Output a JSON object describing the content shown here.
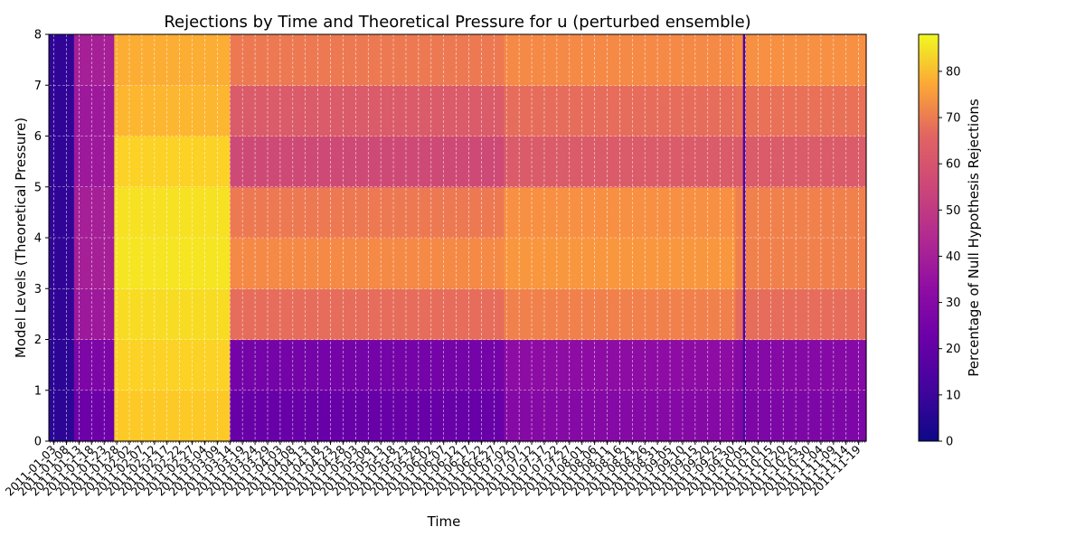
{
  "chart_data": {
    "type": "heatmap",
    "title": "Rejections by Time and Theoretical Pressure for u (perturbed ensemble)",
    "xlabel": "Time",
    "ylabel": "Model Levels (Theoretical Pressure)",
    "colorbar_label": "Percentage of Null Hypothesis Rejections",
    "colormap": "plasma",
    "vmin": 0,
    "vmax": 88,
    "colorbar_ticks": [
      "0",
      "10",
      "20",
      "30",
      "40",
      "50",
      "60",
      "70",
      "80"
    ],
    "ylim": [
      0,
      8
    ],
    "y_ticks": [
      "0",
      "1",
      "2",
      "3",
      "4",
      "5",
      "6",
      "7",
      "8"
    ],
    "x_start_date": "2011-01-01",
    "x_end_date": "2011-11-21",
    "x_tick_labels": [
      "2011-01-03",
      "2011-01-08",
      "2011-01-13",
      "2011-01-18",
      "2011-01-23",
      "2011-01-28",
      "2011-02-02",
      "2011-02-07",
      "2011-02-12",
      "2011-02-17",
      "2011-02-22",
      "2011-02-27",
      "2011-03-04",
      "2011-03-09",
      "2011-03-14",
      "2011-03-19",
      "2011-03-24",
      "2011-03-29",
      "2011-04-03",
      "2011-04-08",
      "2011-04-13",
      "2011-04-18",
      "2011-04-23",
      "2011-04-28",
      "2011-05-03",
      "2011-05-08",
      "2011-05-13",
      "2011-05-18",
      "2011-05-23",
      "2011-05-28",
      "2011-06-02",
      "2011-06-07",
      "2011-06-12",
      "2011-06-17",
      "2011-06-22",
      "2011-06-27",
      "2011-07-02",
      "2011-07-07",
      "2011-07-12",
      "2011-07-17",
      "2011-07-22",
      "2011-07-27",
      "2011-08-01",
      "2011-08-06",
      "2011-08-11",
      "2011-08-16",
      "2011-08-21",
      "2011-08-26",
      "2011-08-31",
      "2011-09-05",
      "2011-09-10",
      "2011-09-15",
      "2011-09-20",
      "2011-09-25",
      "2011-09-30",
      "2011-10-05",
      "2011-10-10",
      "2011-10-15",
      "2011-10-20",
      "2011-10-25",
      "2011-10-30",
      "2011-11-04",
      "2011-11-09",
      "2011-11-14",
      "2011-11-19"
    ],
    "x_tick_interval_days": 5,
    "grid": true,
    "levels": [
      {
        "range": [
          0,
          1
        ],
        "segments": [
          {
            "from": "2011-01-01",
            "to": "2011-01-10",
            "value": 5
          },
          {
            "from": "2011-01-11",
            "to": "2011-01-26",
            "value": 18
          },
          {
            "from": "2011-01-27",
            "to": "2011-03-13",
            "value": 78
          },
          {
            "from": "2011-03-14",
            "to": "2011-06-30",
            "value": 17
          },
          {
            "from": "2011-07-01",
            "to": "2011-09-30",
            "value": 24
          },
          {
            "from": "2011-10-01",
            "to": "2011-11-21",
            "value": 22
          }
        ]
      },
      {
        "range": [
          1,
          2
        ],
        "segments": [
          {
            "from": "2011-01-01",
            "to": "2011-01-10",
            "value": 5
          },
          {
            "from": "2011-01-11",
            "to": "2011-01-26",
            "value": 22
          },
          {
            "from": "2011-01-27",
            "to": "2011-03-13",
            "value": 80
          },
          {
            "from": "2011-03-14",
            "to": "2011-06-30",
            "value": 20
          },
          {
            "from": "2011-07-01",
            "to": "2011-09-30",
            "value": 26
          },
          {
            "from": "2011-10-01",
            "to": "2011-11-21",
            "value": 24
          }
        ]
      },
      {
        "range": [
          2,
          3
        ],
        "segments": [
          {
            "from": "2011-01-01",
            "to": "2011-01-10",
            "value": 6
          },
          {
            "from": "2011-01-11",
            "to": "2011-01-26",
            "value": 30
          },
          {
            "from": "2011-01-27",
            "to": "2011-03-13",
            "value": 82
          },
          {
            "from": "2011-03-14",
            "to": "2011-06-30",
            "value": 55
          },
          {
            "from": "2011-07-01",
            "to": "2011-09-30",
            "value": 60
          },
          {
            "from": "2011-10-01",
            "to": "2011-11-21",
            "value": 55
          }
        ]
      },
      {
        "range": [
          3,
          4
        ],
        "segments": [
          {
            "from": "2011-01-01",
            "to": "2011-01-10",
            "value": 6
          },
          {
            "from": "2011-01-11",
            "to": "2011-01-26",
            "value": 32
          },
          {
            "from": "2011-01-27",
            "to": "2011-03-13",
            "value": 84
          },
          {
            "from": "2011-03-14",
            "to": "2011-06-30",
            "value": 62
          },
          {
            "from": "2011-07-01",
            "to": "2011-09-30",
            "value": 66
          },
          {
            "from": "2011-10-01",
            "to": "2011-11-21",
            "value": 60
          }
        ]
      },
      {
        "range": [
          4,
          5
        ],
        "segments": [
          {
            "from": "2011-01-01",
            "to": "2011-01-10",
            "value": 6
          },
          {
            "from": "2011-01-11",
            "to": "2011-01-26",
            "value": 32
          },
          {
            "from": "2011-01-27",
            "to": "2011-03-13",
            "value": 83
          },
          {
            "from": "2011-03-14",
            "to": "2011-06-30",
            "value": 58
          },
          {
            "from": "2011-07-01",
            "to": "2011-09-30",
            "value": 64
          },
          {
            "from": "2011-10-01",
            "to": "2011-11-21",
            "value": 60
          }
        ]
      },
      {
        "range": [
          5,
          6
        ],
        "segments": [
          {
            "from": "2011-01-01",
            "to": "2011-01-10",
            "value": 6
          },
          {
            "from": "2011-01-11",
            "to": "2011-01-26",
            "value": 30
          },
          {
            "from": "2011-01-27",
            "to": "2011-03-13",
            "value": 80
          },
          {
            "from": "2011-03-14",
            "to": "2011-06-30",
            "value": 45
          },
          {
            "from": "2011-07-01",
            "to": "2011-09-30",
            "value": 50
          },
          {
            "from": "2011-10-01",
            "to": "2011-11-21",
            "value": 50
          }
        ]
      },
      {
        "range": [
          6,
          7
        ],
        "segments": [
          {
            "from": "2011-01-01",
            "to": "2011-01-10",
            "value": 6
          },
          {
            "from": "2011-01-11",
            "to": "2011-01-26",
            "value": 30
          },
          {
            "from": "2011-01-27",
            "to": "2011-03-13",
            "value": 74
          },
          {
            "from": "2011-03-14",
            "to": "2011-06-30",
            "value": 50
          },
          {
            "from": "2011-07-01",
            "to": "2011-09-30",
            "value": 55
          },
          {
            "from": "2011-10-01",
            "to": "2011-11-21",
            "value": 56
          }
        ]
      },
      {
        "range": [
          7,
          8
        ],
        "segments": [
          {
            "from": "2011-01-01",
            "to": "2011-01-10",
            "value": 6
          },
          {
            "from": "2011-01-11",
            "to": "2011-01-26",
            "value": 32
          },
          {
            "from": "2011-01-27",
            "to": "2011-03-13",
            "value": 72
          },
          {
            "from": "2011-03-14",
            "to": "2011-06-30",
            "value": 58
          },
          {
            "from": "2011-07-01",
            "to": "2011-09-30",
            "value": 62
          },
          {
            "from": "2011-10-01",
            "to": "2011-11-21",
            "value": 64
          }
        ]
      }
    ],
    "anomaly": {
      "date": "2011-10-04",
      "value": 12
    }
  }
}
